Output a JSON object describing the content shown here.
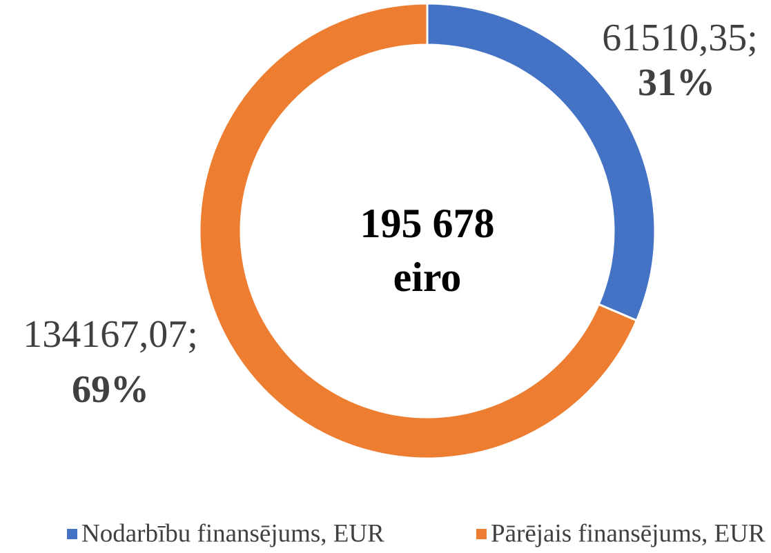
{
  "chart_data": {
    "type": "donut",
    "categories": [
      "Nodarbību finansējums, EUR",
      "Pārējais finansējums, EUR"
    ],
    "values": [
      61510.35,
      134167.07
    ],
    "value_labels": [
      "61510,35;",
      "134167,07;"
    ],
    "percent_labels": [
      "31%",
      "69%"
    ],
    "colors": [
      "#4472c4",
      "#ed7d31"
    ],
    "center_label": [
      "195 678",
      "eiro"
    ],
    "legend": "bottom"
  }
}
